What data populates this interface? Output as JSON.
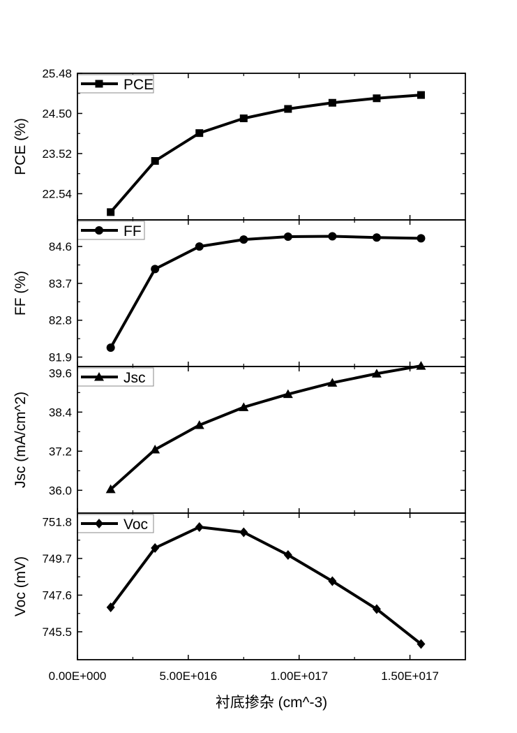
{
  "chart_data": [
    {
      "type": "line",
      "ylabel": "PCE (%)",
      "legend": "PCE",
      "legend_placement": "top-left",
      "marker": "square",
      "ylim": [
        21.9,
        25.48
      ],
      "yticks": [
        22.54,
        23.52,
        24.5,
        25.48
      ],
      "ytick_labels": [
        "22.54",
        "23.52",
        "24.50",
        "25.48"
      ],
      "x": [
        1.5e+16,
        3.5e+16,
        5.5e+16,
        7.5e+16,
        9.5e+16,
        1.15e+17,
        1.35e+17,
        1.55e+17
      ],
      "values": [
        22.09,
        23.34,
        24.02,
        24.38,
        24.61,
        24.76,
        24.87,
        24.95
      ]
    },
    {
      "type": "line",
      "ylabel": "FF (%)",
      "legend": "FF",
      "legend_placement": "top-left",
      "marker": "circle",
      "ylim": [
        81.67,
        85.25
      ],
      "yticks": [
        81.9,
        82.8,
        83.7,
        84.6
      ],
      "ytick_labels": [
        "81.9",
        "82.8",
        "83.7",
        "84.6"
      ],
      "x": [
        1.5e+16,
        3.5e+16,
        5.5e+16,
        7.5e+16,
        9.5e+16,
        1.15e+17,
        1.35e+17,
        1.55e+17
      ],
      "values": [
        82.13,
        84.05,
        84.6,
        84.77,
        84.84,
        84.85,
        84.82,
        84.8
      ]
    },
    {
      "type": "line",
      "ylabel": "Jsc (mA/cm^2)",
      "legend": "Jsc",
      "legend_placement": "top-left",
      "marker": "triangle",
      "ylim": [
        35.3,
        39.8
      ],
      "yticks": [
        36.0,
        37.2,
        38.4,
        39.6
      ],
      "ytick_labels": [
        "36.0",
        "37.2",
        "38.4",
        "39.6"
      ],
      "x": [
        1.5e+16,
        3.5e+16,
        5.5e+16,
        7.5e+16,
        9.5e+16,
        1.15e+17,
        1.35e+17,
        1.55e+17
      ],
      "values": [
        36.03,
        37.25,
        38.0,
        38.55,
        38.95,
        39.3,
        39.58,
        39.82
      ]
    },
    {
      "type": "line",
      "ylabel": "Voc (mV)",
      "legend": "Voc",
      "legend_placement": "top-left",
      "marker": "diamond",
      "ylim": [
        743.9,
        752.3
      ],
      "yticks": [
        745.5,
        747.6,
        749.7,
        751.8
      ],
      "ytick_labels": [
        "745.5",
        "747.6",
        "749.7",
        "751.8"
      ],
      "x": [
        1.5e+16,
        3.5e+16,
        5.5e+16,
        7.5e+16,
        9.5e+16,
        1.15e+17,
        1.35e+17,
        1.55e+17
      ],
      "values": [
        746.9,
        750.3,
        751.5,
        751.2,
        749.9,
        748.4,
        746.8,
        744.8
      ]
    }
  ],
  "x_axis": {
    "label": "衬底掺杂 (cm^-3)",
    "xlim": [
      0,
      1.75e+17
    ],
    "ticks": [
      0,
      5e+16,
      1e+17,
      1.5e+17
    ],
    "tick_labels": [
      "0.00E+000",
      "5.00E+016",
      "1.00E+017",
      "1.50E+017"
    ],
    "minor_ticks": [
      2.5e+16,
      7.5e+16,
      1.25e+17
    ]
  },
  "style": {
    "line_color": "#000000"
  }
}
